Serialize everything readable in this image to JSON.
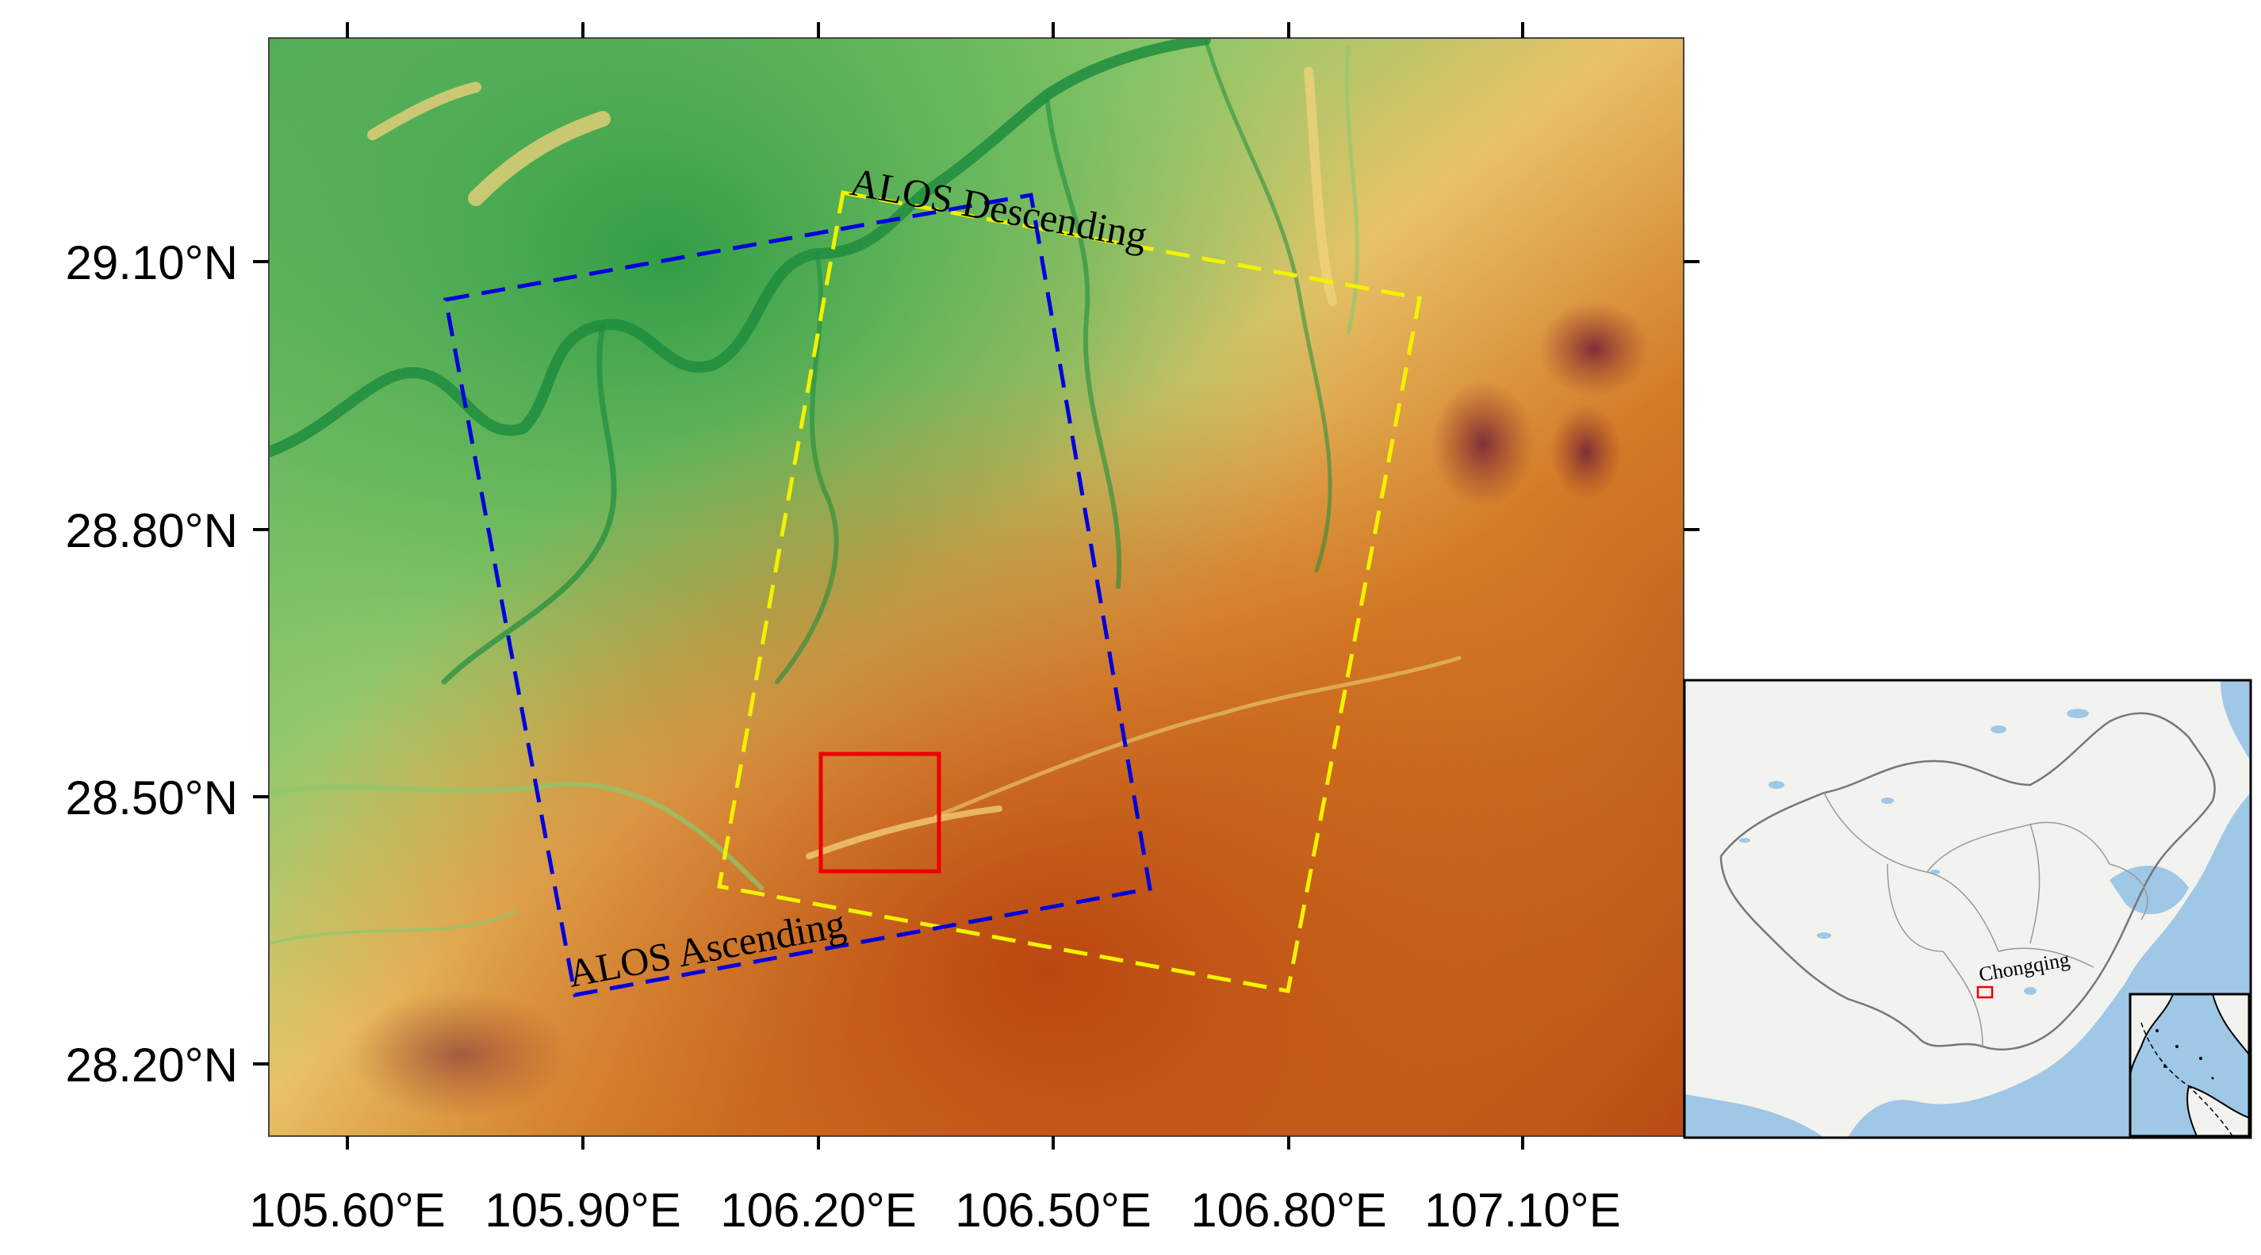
{
  "map": {
    "x_ticks": [
      "105.60°E",
      "105.90°E",
      "106.20°E",
      "106.50°E",
      "106.80°E",
      "107.10°E"
    ],
    "y_ticks": [
      "29.10°N",
      "28.80°N",
      "28.50°N",
      "28.20°N"
    ],
    "footprints": [
      {
        "label": "ALOS Descending",
        "color": "#f2f200",
        "style": "dashed"
      },
      {
        "label": "ALOS Ascending",
        "color": "#0000dd",
        "style": "dashed"
      }
    ],
    "study_area": {
      "color": "#ee0000"
    },
    "colors": {
      "low": "#2e9e46",
      "mid_low": "#8ccc6e",
      "mid": "#f0d27a",
      "mid_high": "#d98a2e",
      "high": "#b84010",
      "peak": "#7a2a3a"
    }
  },
  "inset": {
    "label": "Chongqing",
    "colors": {
      "land": "#f2f2ef",
      "water": "#9fc7e6",
      "border": "#777777",
      "marker": "#ee0000"
    }
  }
}
